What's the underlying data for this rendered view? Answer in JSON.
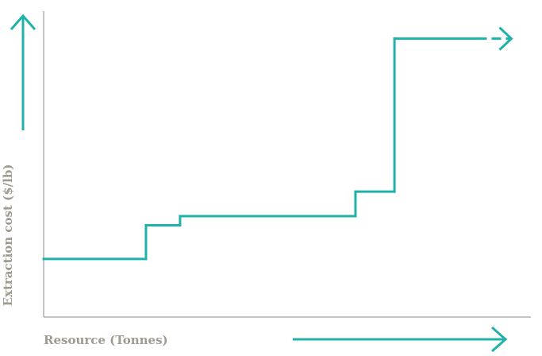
{
  "chart_data": {
    "type": "line",
    "step": true,
    "xlabel": "Resource (Tonnes)",
    "ylabel": "Extraction cost ($/lb)",
    "xlim": [
      0,
      100
    ],
    "ylim": [
      0,
      100
    ],
    "grid": false,
    "legend": "none",
    "series": [
      {
        "points": [
          [
            0,
            19
          ],
          [
            21,
            19
          ],
          [
            21,
            30
          ],
          [
            28,
            30
          ],
          [
            28,
            33
          ],
          [
            64,
            33
          ],
          [
            64,
            41
          ],
          [
            72,
            41
          ],
          [
            72,
            91
          ],
          [
            89,
            91
          ]
        ],
        "continues_dashed_to": [
          96,
          91
        ]
      }
    ],
    "ticks_shown": false
  },
  "colors": {
    "series": "#20b2aa",
    "axis": "#8a8a8a",
    "label": "#a09b90"
  }
}
